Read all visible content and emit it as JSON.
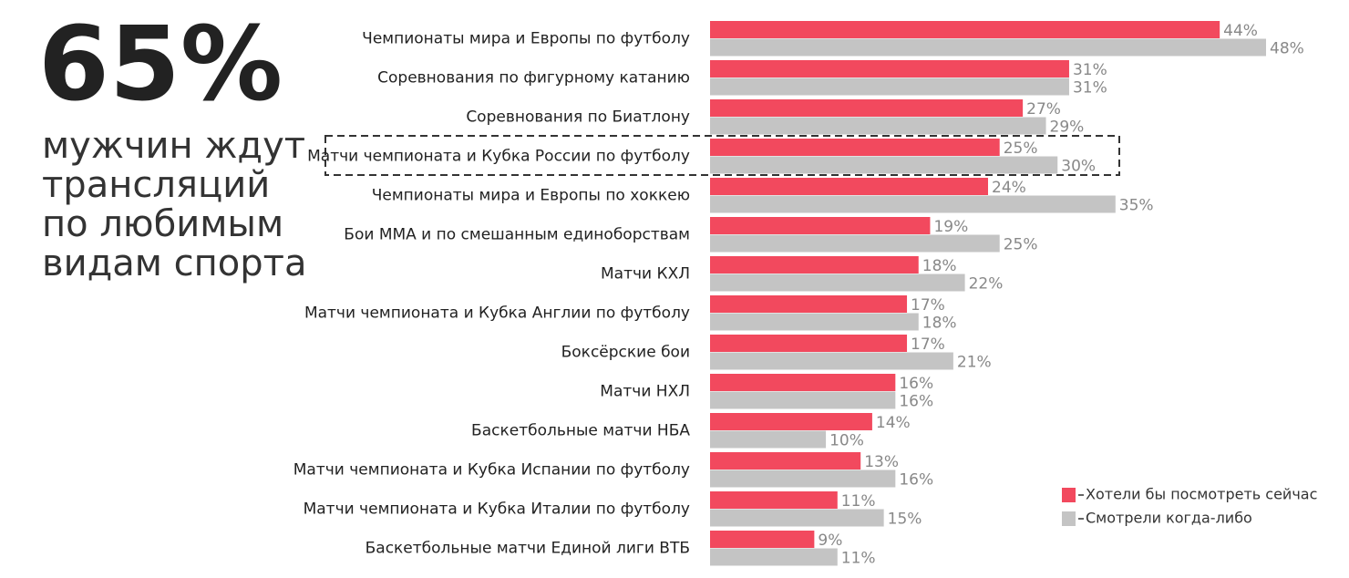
{
  "callout": {
    "stat": "65%",
    "lines": [
      "мужчин ждут",
      "трансляций",
      "по любимым",
      "видам спорта"
    ]
  },
  "chart_data": {
    "type": "bar",
    "orientation": "horizontal",
    "categories": [
      "Чемпионаты мира и Европы по футболу",
      "Соревнования по фигурному катанию",
      "Соревнования по Биатлону",
      "Матчи чемпионата и Кубка России по футболу",
      "Чемпионаты мира и Европы по хоккею",
      "Бои ММА и по смешанным единоборствам",
      "Матчи КХЛ",
      "Матчи чемпионата и Кубка Англии по футболу",
      "Боксёрские бои",
      "Матчи НХЛ",
      "Баскетбольные матчи НБА",
      "Матчи чемпионата и Кубка Испании по футболу",
      "Матчи чемпионата и Кубка Италии по футболу",
      "Баскетбольные матчи Единой лиги ВТБ"
    ],
    "series": [
      {
        "name": "Хотели бы посмотреть сейчас",
        "color": "#f2495e",
        "values": [
          44,
          31,
          27,
          25,
          24,
          19,
          18,
          17,
          17,
          16,
          14,
          13,
          11,
          9
        ],
        "value_labels": [
          "44%",
          "31%",
          "27%",
          "25%",
          "24%",
          "19%",
          "18%",
          "17%",
          "17%",
          "16%",
          "14%",
          "13%",
          "11%",
          "9%"
        ]
      },
      {
        "name": "Смотрели когда-либо",
        "color": "#c4c4c4",
        "values": [
          48,
          31,
          29,
          30,
          35,
          25,
          22,
          18,
          21,
          16,
          10,
          16,
          15,
          11
        ],
        "value_labels": [
          "48%",
          "31%",
          "29%",
          "30%",
          "35%",
          "25%",
          "22%",
          "18%",
          "21%",
          "16%",
          "10%",
          "16%",
          "15%",
          "11%"
        ]
      }
    ]
  }
}
